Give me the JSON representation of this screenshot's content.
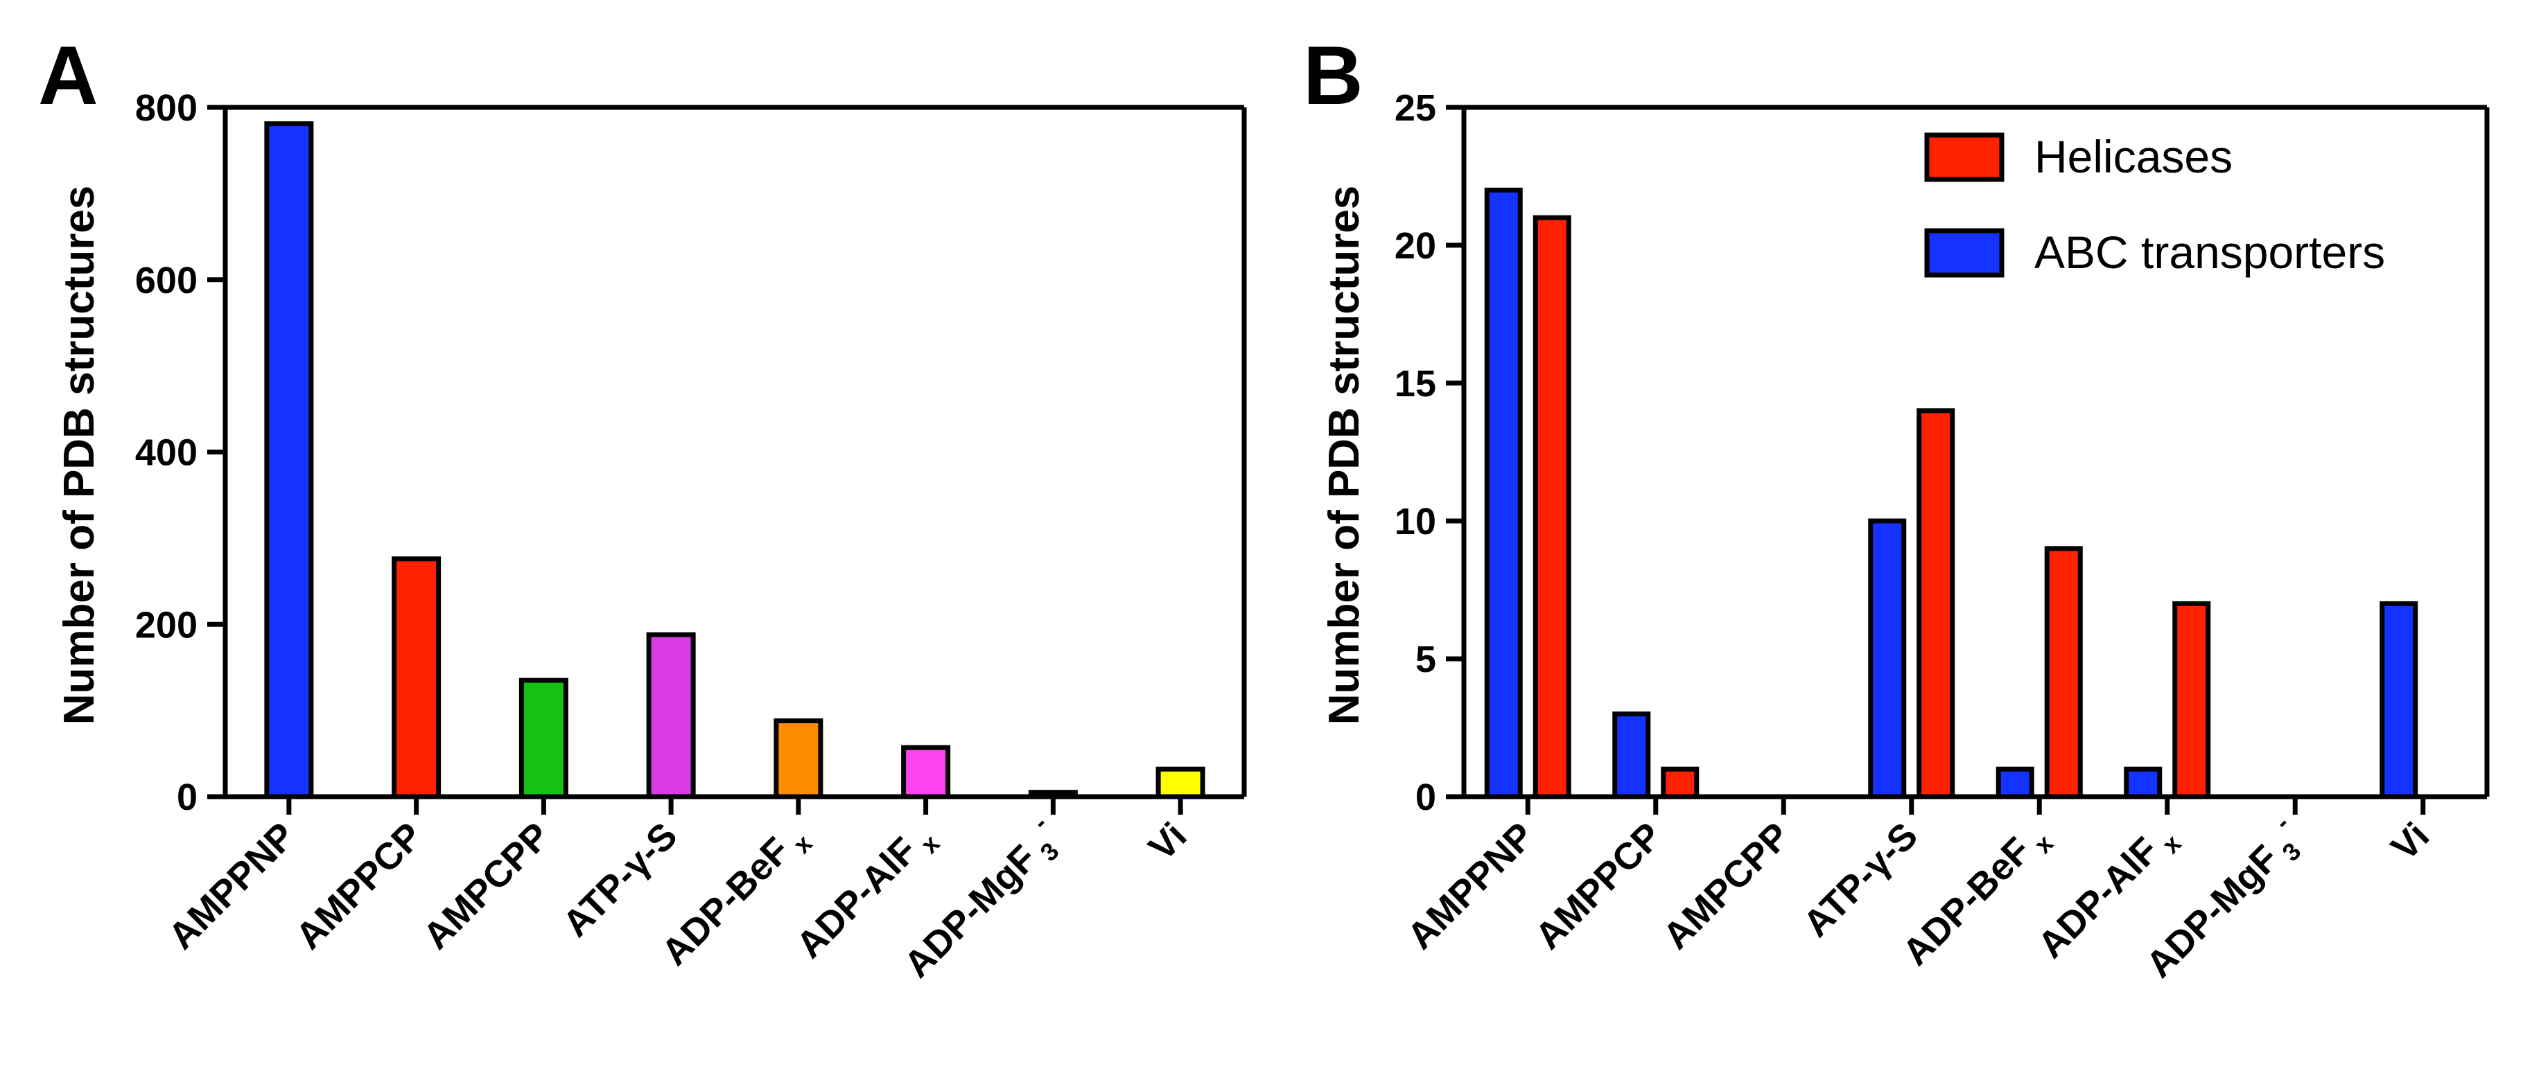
{
  "figure": {
    "panel_a_letter": "A",
    "panel_b_letter": "B"
  },
  "chart_data": [
    {
      "type": "bar",
      "panel": "A",
      "title": "",
      "xlabel": "",
      "ylabel": "Number of PDB structures",
      "ylim": [
        0,
        800
      ],
      "yticks": [
        0,
        200,
        400,
        600,
        800
      ],
      "categories": [
        "AMPPNP",
        "AMPPCP",
        "AMPCPP",
        "ATP-γ-S",
        "ADP-BeF x",
        "ADP-AlF x",
        "ADP-MgF 3 -",
        "Vi"
      ],
      "values": [
        781,
        276,
        135,
        188,
        88,
        57,
        5,
        32
      ],
      "colors": [
        "#1433FF",
        "#FF2200",
        "#16C116",
        "#D93BE6",
        "#FF8C00",
        "#FF44F2",
        "#000000",
        "#FFFF00"
      ],
      "grid": false
    },
    {
      "type": "bar",
      "panel": "B",
      "title": "",
      "xlabel": "",
      "ylabel": "Number of PDB structures",
      "ylim": [
        0,
        25
      ],
      "yticks": [
        0,
        5,
        10,
        15,
        20,
        25
      ],
      "categories": [
        "AMPPNP",
        "AMPPCP",
        "AMPCPP",
        "ATP-γ-S",
        "ADP-BeF x",
        "ADP-AlF x",
        "ADP-MgF 3 -",
        "Vi"
      ],
      "series": [
        {
          "name": "ABC transporters",
          "color": "#1433FF",
          "values": [
            22,
            3,
            0,
            10,
            1,
            1,
            0,
            7
          ]
        },
        {
          "name": "Helicases",
          "color": "#FF2200",
          "values": [
            21,
            1,
            0,
            14,
            9,
            7,
            0,
            0
          ]
        }
      ],
      "legend": {
        "placement": "top-right",
        "entries": [
          "Helicases",
          "ABC transporters"
        ]
      },
      "grid": false
    }
  ]
}
